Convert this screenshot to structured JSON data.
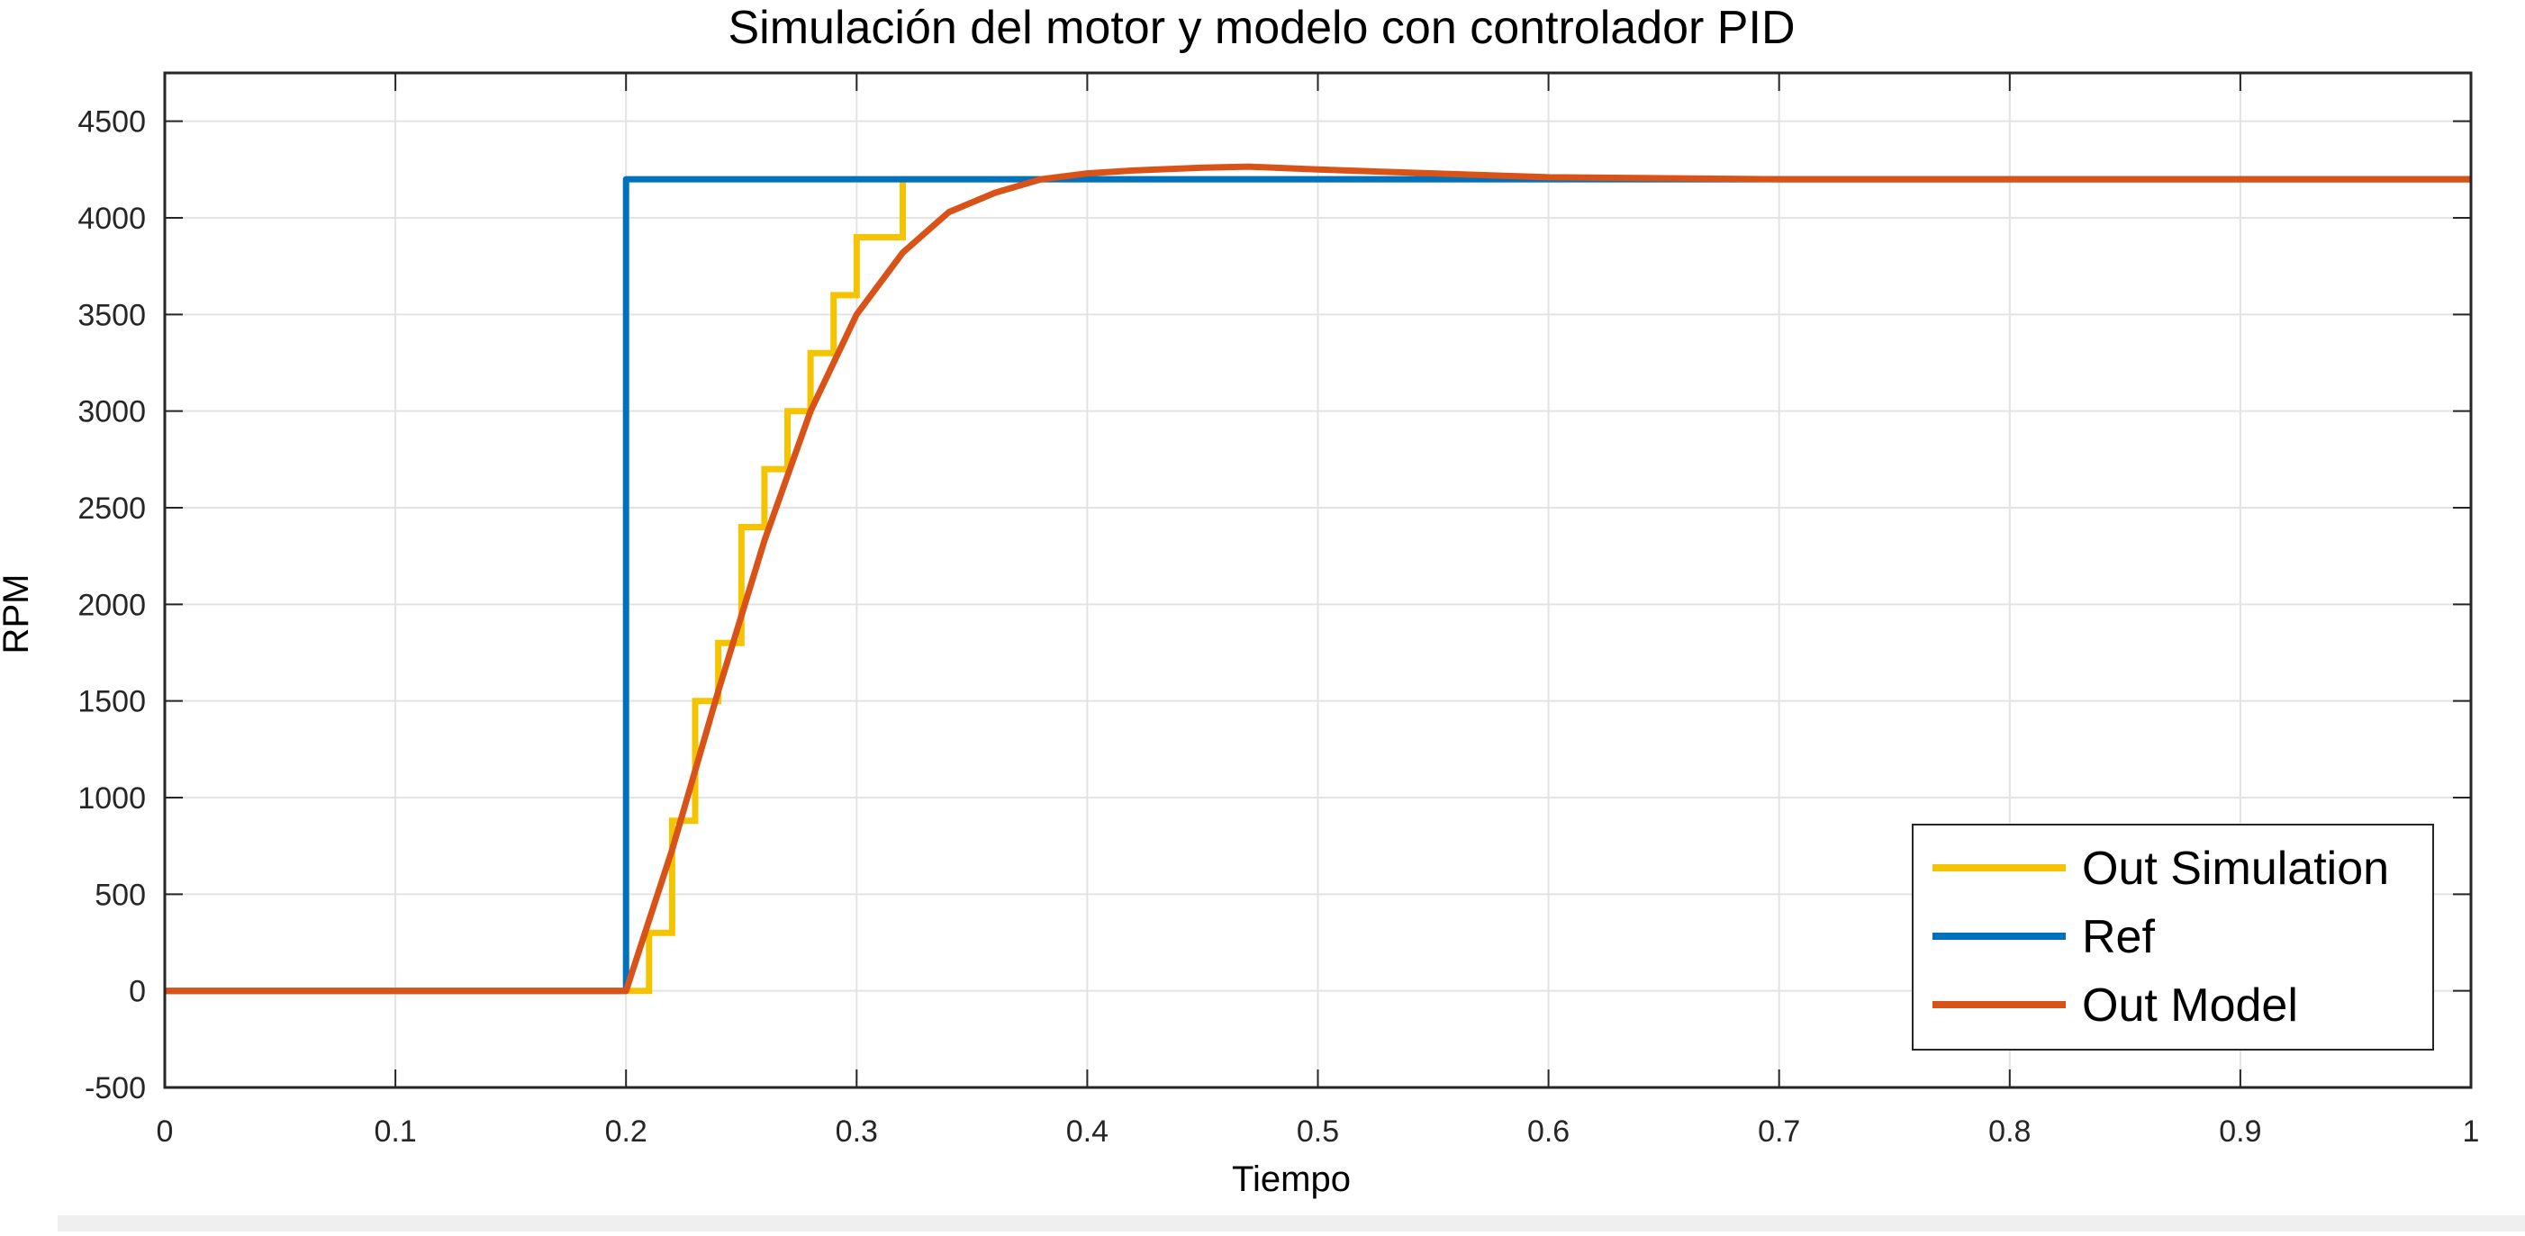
{
  "chart_data": {
    "type": "line",
    "title": "Simulación del motor y modelo con controlador PID",
    "xlabel": "Tiempo",
    "ylabel": "RPM",
    "xlim": [
      0,
      1
    ],
    "ylim": [
      -500,
      4750
    ],
    "xticks": [
      0,
      0.1,
      0.2,
      0.3,
      0.4,
      0.5,
      0.6,
      0.7,
      0.8,
      0.9,
      1
    ],
    "xtick_labels": [
      "0",
      "0.1",
      "0.2",
      "0.3",
      "0.4",
      "0.5",
      "0.6",
      "0.7",
      "0.8",
      "0.9",
      "1"
    ],
    "yticks": [
      -500,
      0,
      500,
      1000,
      1500,
      2000,
      2500,
      3000,
      3500,
      4000,
      4500
    ],
    "ytick_labels": [
      "-500",
      "0",
      "500",
      "1000",
      "1500",
      "2000",
      "2500",
      "3000",
      "3500",
      "4000",
      "4500"
    ],
    "grid": true,
    "legend_position": "bottom-right",
    "series": [
      {
        "name": "Out Simulation",
        "color": "#f5c400",
        "style": "step",
        "points": [
          [
            0,
            0
          ],
          [
            0.21,
            0
          ],
          [
            0.21,
            300
          ],
          [
            0.22,
            300
          ],
          [
            0.22,
            880
          ],
          [
            0.23,
            880
          ],
          [
            0.23,
            1500
          ],
          [
            0.24,
            1500
          ],
          [
            0.24,
            1800
          ],
          [
            0.25,
            1800
          ],
          [
            0.25,
            2400
          ],
          [
            0.26,
            2400
          ],
          [
            0.26,
            2700
          ],
          [
            0.27,
            2700
          ],
          [
            0.27,
            3000
          ],
          [
            0.28,
            3000
          ],
          [
            0.28,
            3300
          ],
          [
            0.29,
            3300
          ],
          [
            0.29,
            3600
          ],
          [
            0.3,
            3600
          ],
          [
            0.3,
            3900
          ],
          [
            0.32,
            3900
          ],
          [
            0.32,
            4200
          ],
          [
            1.0,
            4200
          ]
        ]
      },
      {
        "name": "Ref",
        "color": "#0072bd",
        "style": "line",
        "points": [
          [
            0,
            0
          ],
          [
            0.2,
            0
          ],
          [
            0.2,
            4200
          ],
          [
            1.0,
            4200
          ]
        ]
      },
      {
        "name": "Out Model",
        "color": "#d95319",
        "style": "line",
        "points": [
          [
            0,
            0
          ],
          [
            0.2,
            0
          ],
          [
            0.22,
            730
          ],
          [
            0.24,
            1550
          ],
          [
            0.26,
            2330
          ],
          [
            0.28,
            3000
          ],
          [
            0.3,
            3500
          ],
          [
            0.32,
            3820
          ],
          [
            0.34,
            4030
          ],
          [
            0.36,
            4130
          ],
          [
            0.38,
            4200
          ],
          [
            0.4,
            4230
          ],
          [
            0.42,
            4245
          ],
          [
            0.45,
            4260
          ],
          [
            0.47,
            4265
          ],
          [
            0.5,
            4250
          ],
          [
            0.55,
            4230
          ],
          [
            0.6,
            4210
          ],
          [
            0.65,
            4205
          ],
          [
            0.7,
            4200
          ],
          [
            1.0,
            4200
          ]
        ]
      }
    ]
  }
}
